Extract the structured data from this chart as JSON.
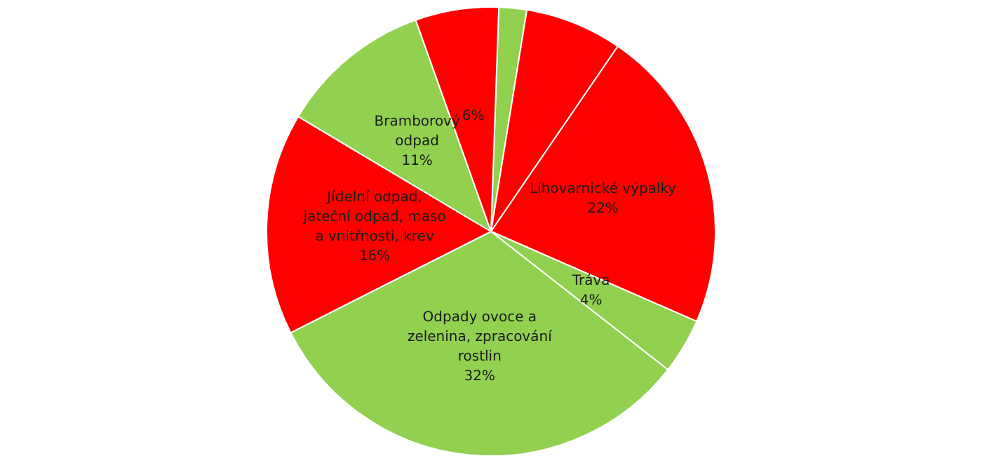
{
  "chart_data": {
    "type": "pie",
    "categories": [
      null,
      null,
      "Lihovarnické výpalky",
      "Tráva",
      "Odpady ovoce a zelenina, zpracování rostlin",
      "Jídelní odpad, jateční odpad, maso a vnitřnosti, krev",
      "Bramborový odpad",
      null
    ],
    "values": [
      2,
      7,
      22,
      4,
      32,
      16,
      11,
      6
    ],
    "colors": [
      "#92d050",
      "#ff0000",
      "#ff0000",
      "#92d050",
      "#92d050",
      "#ff0000",
      "#92d050",
      "#ff0000"
    ],
    "value_labels": [
      null,
      null,
      "22%",
      "4%",
      "32%",
      "16%",
      "11%",
      "6%"
    ]
  }
}
